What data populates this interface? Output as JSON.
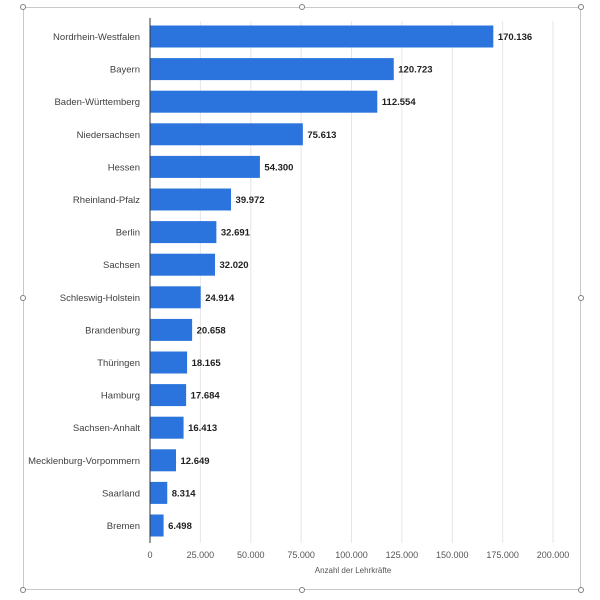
{
  "chart_data": {
    "type": "bar",
    "orientation": "horizontal",
    "categories": [
      "Nordrhein-Westfalen",
      "Bayern",
      "Baden-Württemberg",
      "Niedersachsen",
      "Hessen",
      "Rheinland-Pfalz",
      "Berlin",
      "Sachsen",
      "Schleswig-Holstein",
      "Brandenburg",
      "Thüringen",
      "Hamburg",
      "Sachsen-Anhalt",
      "Mecklenburg-Vorpommern",
      "Saarland",
      "Bremen"
    ],
    "values": [
      170136,
      120723,
      112554,
      75613,
      54300,
      39972,
      32691,
      32020,
      24914,
      20658,
      18165,
      17684,
      16413,
      12649,
      8314,
      6498
    ],
    "value_labels": [
      "170.136",
      "120.723",
      "112.554",
      "75.613",
      "54.300",
      "39.972",
      "32.691",
      "32.020",
      "24.914",
      "20.658",
      "18.165",
      "17.684",
      "16.413",
      "12.649",
      "8.314",
      "6.498"
    ],
    "xlim": [
      0,
      200000
    ],
    "xticks": [
      0,
      25000,
      50000,
      75000,
      100000,
      125000,
      150000,
      175000,
      200000
    ],
    "xtick_labels": [
      "0",
      "25.000",
      "50.000",
      "75.000",
      "100.000",
      "125.000",
      "150.000",
      "175.000",
      "200.000"
    ],
    "xlabel": "Anzahl der Lehrkräfte",
    "ylabel": "",
    "title": "",
    "grid": "vertical",
    "bar_color": "#2b74dd"
  }
}
